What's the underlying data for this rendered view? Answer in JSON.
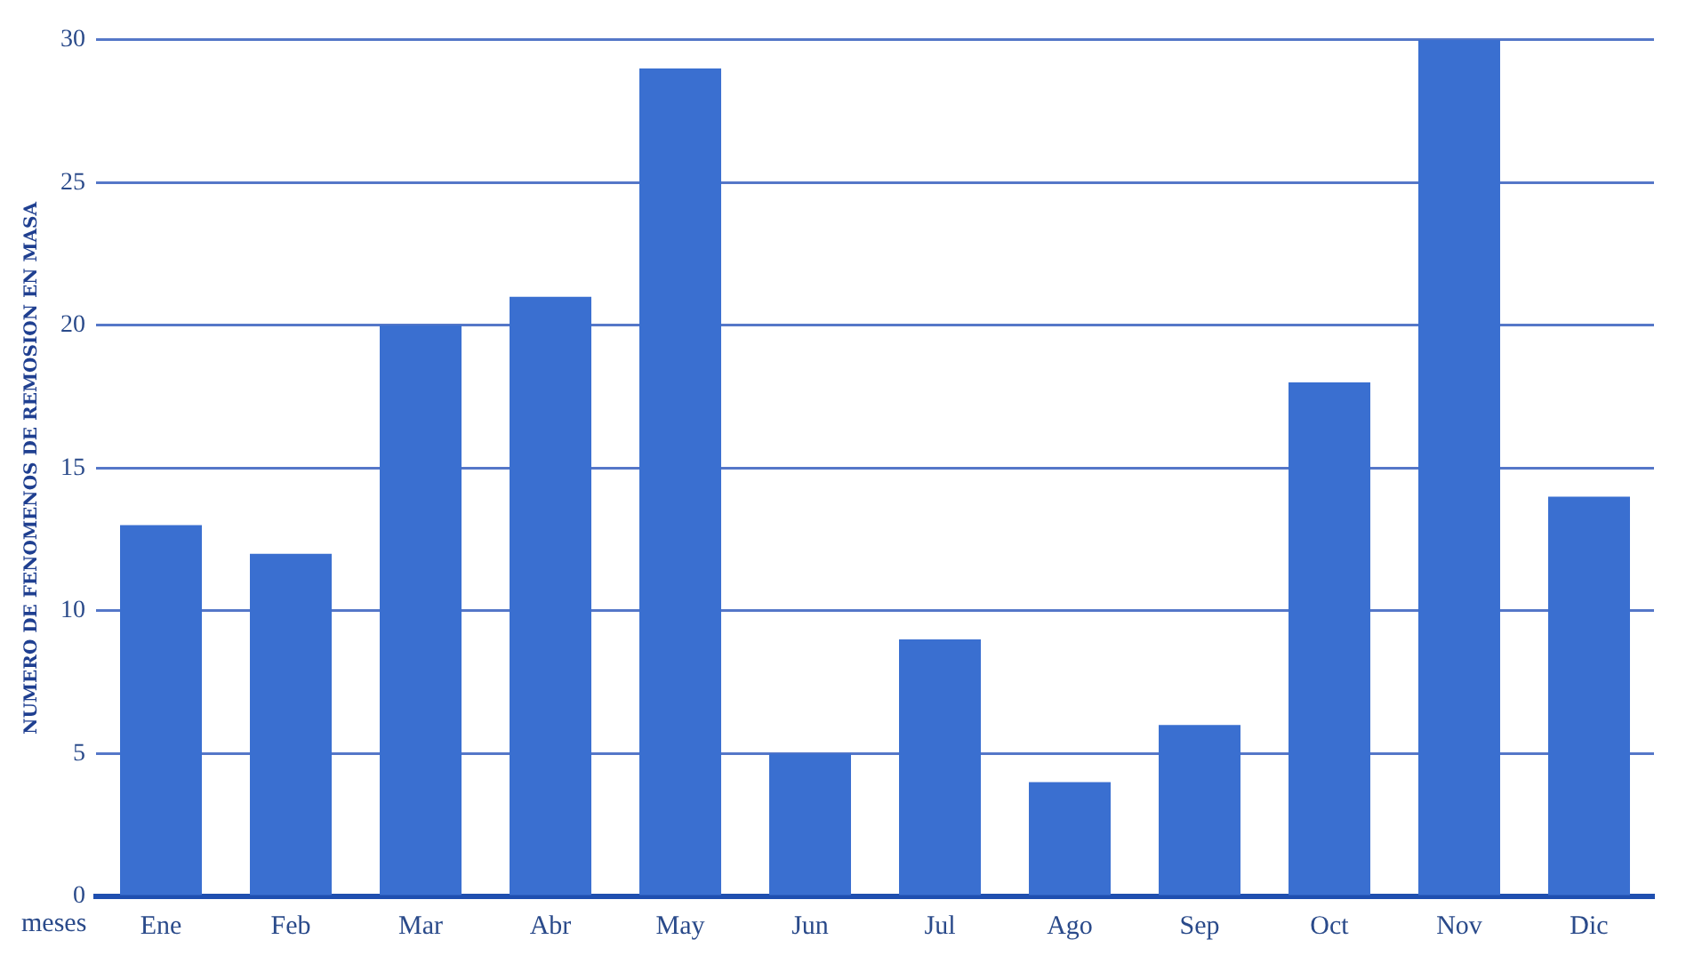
{
  "chart_data": {
    "type": "bar",
    "xlabel": "meses",
    "ylabel": "NUMERO DE FENOMENOS DE REMOSION EN MASA",
    "categories": [
      "Ene",
      "Feb",
      "Mar",
      "Abr",
      "May",
      "Jun",
      "Jul",
      "Ago",
      "Sep",
      "Oct",
      "Nov",
      "Dic"
    ],
    "values": [
      13,
      12,
      20,
      21,
      29,
      5,
      9,
      4,
      6,
      18,
      30,
      14
    ],
    "color": "#3a6fd0",
    "ylim": [
      0,
      30
    ],
    "yticks": [
      0,
      5,
      10,
      15,
      20,
      25,
      30
    ],
    "grid": "y",
    "legend": false
  }
}
